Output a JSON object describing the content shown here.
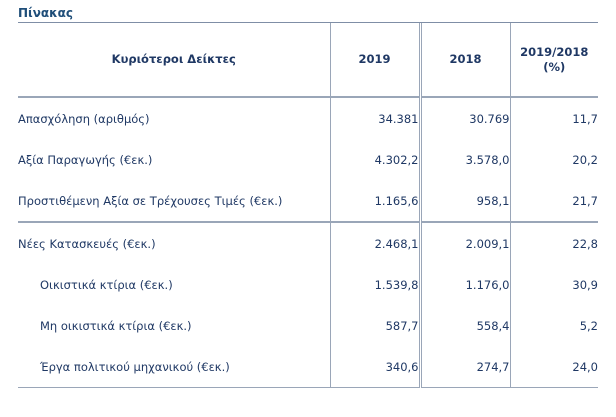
{
  "caption": "Πίνακας",
  "table": {
    "headers": [
      "Κυριότεροι Δείκτες",
      "2019",
      "2018",
      "2019/2018",
      "(%)"
    ],
    "rows": [
      {
        "label": "Απασχόληση (αριθμός)",
        "v2019": "34.381",
        "v2018": "30.769",
        "change": "11,7"
      },
      {
        "label": "Αξία Παραγωγής (€εκ.)",
        "v2019": "4.302,2",
        "v2018": "3.578,0",
        "change": "20,2"
      },
      {
        "label": "Προστιθέμενη Αξία σε Τρέχουσες Τιμές (€εκ.)",
        "v2019": "1.165,6",
        "v2018": "958,1",
        "change": "21,7"
      },
      {
        "label": "Νέες Κατασκευές (€εκ.)",
        "v2019": "2.468,1",
        "v2018": "2.009,1",
        "change": "22,8"
      },
      {
        "label": "Οικιστικά κτίρια (€εκ.)",
        "v2019": "1.539,8",
        "v2018": "1.176,0",
        "change": "30,9"
      },
      {
        "label": "Μη οικιστικά κτίρια (€εκ.)",
        "v2019": "587,7",
        "v2018": "558,4",
        "change": "5,2"
      },
      {
        "label": "Έργα πολιτικού μηχανικού (€εκ.)",
        "v2019": "340,6",
        "v2018": "274,7",
        "change": "24,0"
      }
    ]
  }
}
